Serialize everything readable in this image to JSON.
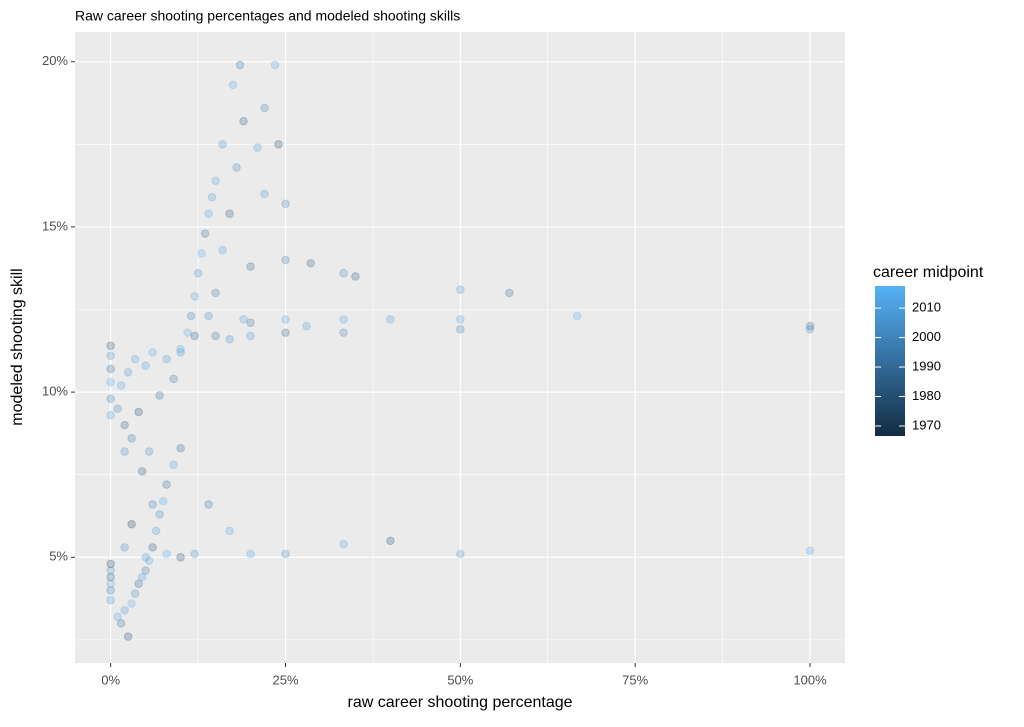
{
  "chart_data": {
    "type": "scatter",
    "title": "Raw career shooting percentages and modeled shooting skills",
    "x_label": "raw career shooting percentage",
    "y_label": "modeled shooting skill",
    "legend_title": "career midpoint",
    "x": [
      0,
      0,
      0,
      0,
      0,
      0,
      0,
      0,
      0,
      0,
      0,
      0,
      1,
      1.5,
      2,
      2.5,
      3,
      3.5,
      4,
      4.5,
      5,
      5.5,
      6,
      6.5,
      7,
      7.5,
      8,
      9,
      10,
      2,
      3,
      5,
      6,
      8,
      10,
      12,
      14,
      17,
      1,
      1.5,
      2,
      2.5,
      3,
      3.5,
      4,
      5,
      5.5,
      6,
      7,
      8,
      9,
      10,
      4.5,
      2,
      10,
      11,
      11.5,
      12,
      12.5,
      13,
      13.5,
      14,
      14.5,
      15,
      12,
      14,
      15,
      16,
      17,
      18,
      16,
      17.5,
      18.5,
      19,
      21,
      22,
      23.5,
      24,
      25,
      22,
      20,
      19,
      17,
      15,
      20,
      20,
      25,
      25,
      28,
      33.3,
      33.3,
      33.3,
      35,
      40,
      50,
      50,
      50,
      57,
      66.7,
      100,
      100,
      20,
      25,
      33.3,
      40,
      50,
      100,
      25,
      28.6
    ],
    "y": [
      3.7,
      4.0,
      4.2,
      4.4,
      4.6,
      4.8,
      9.3,
      9.8,
      10.3,
      10.7,
      11.1,
      11.4,
      3.2,
      3.0,
      3.4,
      2.6,
      3.6,
      3.9,
      4.2,
      4.4,
      4.6,
      4.9,
      5.3,
      5.8,
      6.3,
      6.7,
      7.2,
      7.8,
      8.3,
      5.3,
      6.0,
      5.0,
      6.6,
      5.1,
      5.0,
      5.1,
      6.6,
      5.8,
      9.5,
      10.2,
      9.0,
      10.6,
      8.6,
      11.0,
      9.4,
      10.8,
      8.2,
      11.2,
      9.9,
      11.0,
      10.4,
      11.3,
      7.6,
      8.2,
      11.2,
      11.8,
      12.3,
      12.9,
      13.6,
      14.2,
      14.8,
      15.4,
      15.9,
      16.4,
      11.7,
      12.3,
      13.0,
      14.3,
      15.4,
      16.8,
      17.5,
      19.3,
      19.9,
      18.2,
      17.4,
      18.6,
      19.9,
      17.5,
      15.7,
      16.0,
      13.8,
      12.2,
      11.6,
      11.7,
      11.7,
      12.1,
      12.2,
      11.8,
      12.0,
      11.8,
      12.2,
      13.6,
      13.5,
      12.2,
      11.9,
      12.2,
      13.1,
      13.0,
      12.3,
      11.9,
      12.0,
      5.1,
      5.1,
      5.4,
      5.5,
      5.1,
      5.2,
      14.0,
      13.9
    ],
    "color_values": [
      2008,
      1995,
      2012,
      1985,
      2003,
      1975,
      2010,
      1998,
      2014,
      1990,
      2005,
      1980,
      2012,
      1992,
      2006,
      1978,
      2015,
      2001,
      1988,
      2010,
      1996,
      2013,
      1983,
      2008,
      2000,
      2014,
      1991,
      2011,
      1986,
      2004,
      1972,
      2009,
      1997,
      2015,
      1981,
      2007,
      1994,
      2012,
      1999,
      2011,
      1984,
      2006,
      1993,
      2013,
      1977,
      2009,
      2002,
      2015,
      1989,
      2007,
      1996,
      2012,
      1982,
      2004,
      2010,
      2014,
      1998,
      2012,
      2005,
      2015,
      1990,
      2011,
      2008,
      2013,
      1987,
      2003,
      1995,
      2009,
      1980,
      2001,
      2006,
      2014,
      1992,
      1985,
      2010,
      1997,
      2013,
      1976,
      1999,
      2007,
      1988,
      2011,
      2004,
      1994,
      2005,
      1993,
      2012,
      1986,
      2008,
      1999,
      2014,
      2002,
      1983,
      2010,
      1996,
      2013,
      2007,
      1990,
      2015,
      2004,
      1988,
      2011,
      2001,
      2014,
      1979,
      2006,
      2012,
      1997,
      1985
    ],
    "low_color": "#132B43",
    "high_color": "#56B1F7",
    "point_opacity": 0.25,
    "clim": [
      1966.6,
      2017.5
    ],
    "cticks": [
      1970,
      1980,
      1990,
      2000,
      2010
    ],
    "xlim": [
      -5.1,
      105
    ],
    "ylim": [
      1.8,
      20.9
    ],
    "xticks": [
      {
        "value": 0,
        "label": "0%"
      },
      {
        "value": 25,
        "label": "25%"
      },
      {
        "value": 50,
        "label": "50%"
      },
      {
        "value": 75,
        "label": "75%"
      },
      {
        "value": 100,
        "label": "100%"
      }
    ],
    "yticks": [
      {
        "value": 5,
        "label": "5%"
      },
      {
        "value": 10,
        "label": "10%"
      },
      {
        "value": 15,
        "label": "15%"
      },
      {
        "value": 20,
        "label": "20%"
      }
    ],
    "x_minor_grid": [
      12.5,
      37.5,
      62.5,
      87.5
    ],
    "y_minor_grid": [
      2.5,
      7.5,
      12.5,
      17.5
    ],
    "grid": true
  }
}
